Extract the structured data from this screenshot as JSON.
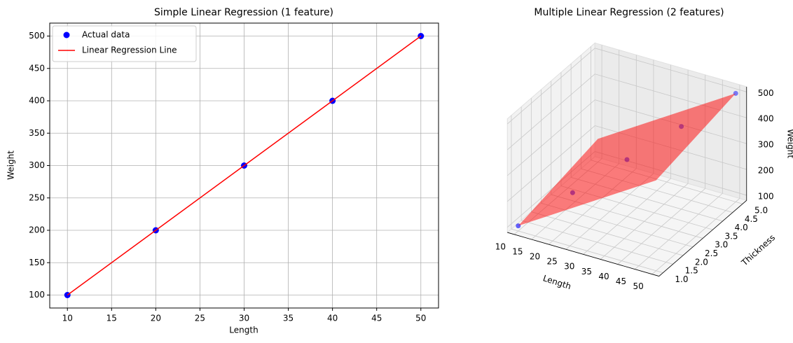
{
  "chart_data": [
    {
      "type": "scatter",
      "title": "Simple Linear Regression (1 feature)",
      "x_label": "Length",
      "y_label": "Weight",
      "x": [
        10,
        20,
        30,
        40,
        50
      ],
      "series": [
        {
          "name": "Actual data",
          "kind": "scatter",
          "color": "#0000ff",
          "values": [
            100,
            200,
            300,
            400,
            500
          ]
        },
        {
          "name": "Linear Regression Line",
          "kind": "line",
          "color": "#ff0000",
          "values": [
            100,
            200,
            300,
            400,
            500
          ]
        }
      ],
      "xlim": [
        8,
        52
      ],
      "xticks": [
        10,
        15,
        20,
        25,
        30,
        35,
        40,
        45,
        50
      ],
      "ylim": [
        80,
        520
      ],
      "yticks": [
        100,
        150,
        200,
        250,
        300,
        350,
        400,
        450,
        500
      ],
      "grid": true,
      "legend": "upper-left"
    },
    {
      "type": "scatter3d",
      "title": "Multiple Linear Regression (2 features)",
      "x_label": "Length",
      "y_label": "Thickness",
      "z_label": "Weight",
      "x": [
        10,
        20,
        30,
        40,
        50
      ],
      "y": [
        1,
        2,
        3,
        4,
        5
      ],
      "series": [
        {
          "color": "#0000ff",
          "values": [
            100,
            200,
            300,
            400,
            500
          ]
        }
      ],
      "surface": {
        "x": [
          10,
          50
        ],
        "y": [
          1,
          5
        ],
        "z": [
          [
            100,
            430
          ],
          [
            170,
            500
          ]
        ],
        "color": "#ff0000"
      },
      "xlim": [
        8,
        52
      ],
      "xticks": [
        10,
        15,
        20,
        25,
        30,
        35,
        40,
        45,
        50
      ],
      "ylim": [
        0.8,
        5.2
      ],
      "yticks": [
        {
          "value": 1,
          "label": "1.0"
        },
        {
          "value": 1.5,
          "label": "1.5"
        },
        {
          "value": 2,
          "label": "2.0"
        },
        {
          "value": 2.5,
          "label": "2.5"
        },
        {
          "value": 3,
          "label": "3.0"
        },
        {
          "value": 3.5,
          "label": "3.5"
        },
        {
          "value": 4,
          "label": "4.0"
        },
        {
          "value": 4.5,
          "label": "4.5"
        },
        {
          "value": 5,
          "label": "5.0"
        }
      ],
      "zlim": [
        80,
        520
      ],
      "zticks": [
        100,
        200,
        300,
        400,
        500
      ]
    }
  ]
}
